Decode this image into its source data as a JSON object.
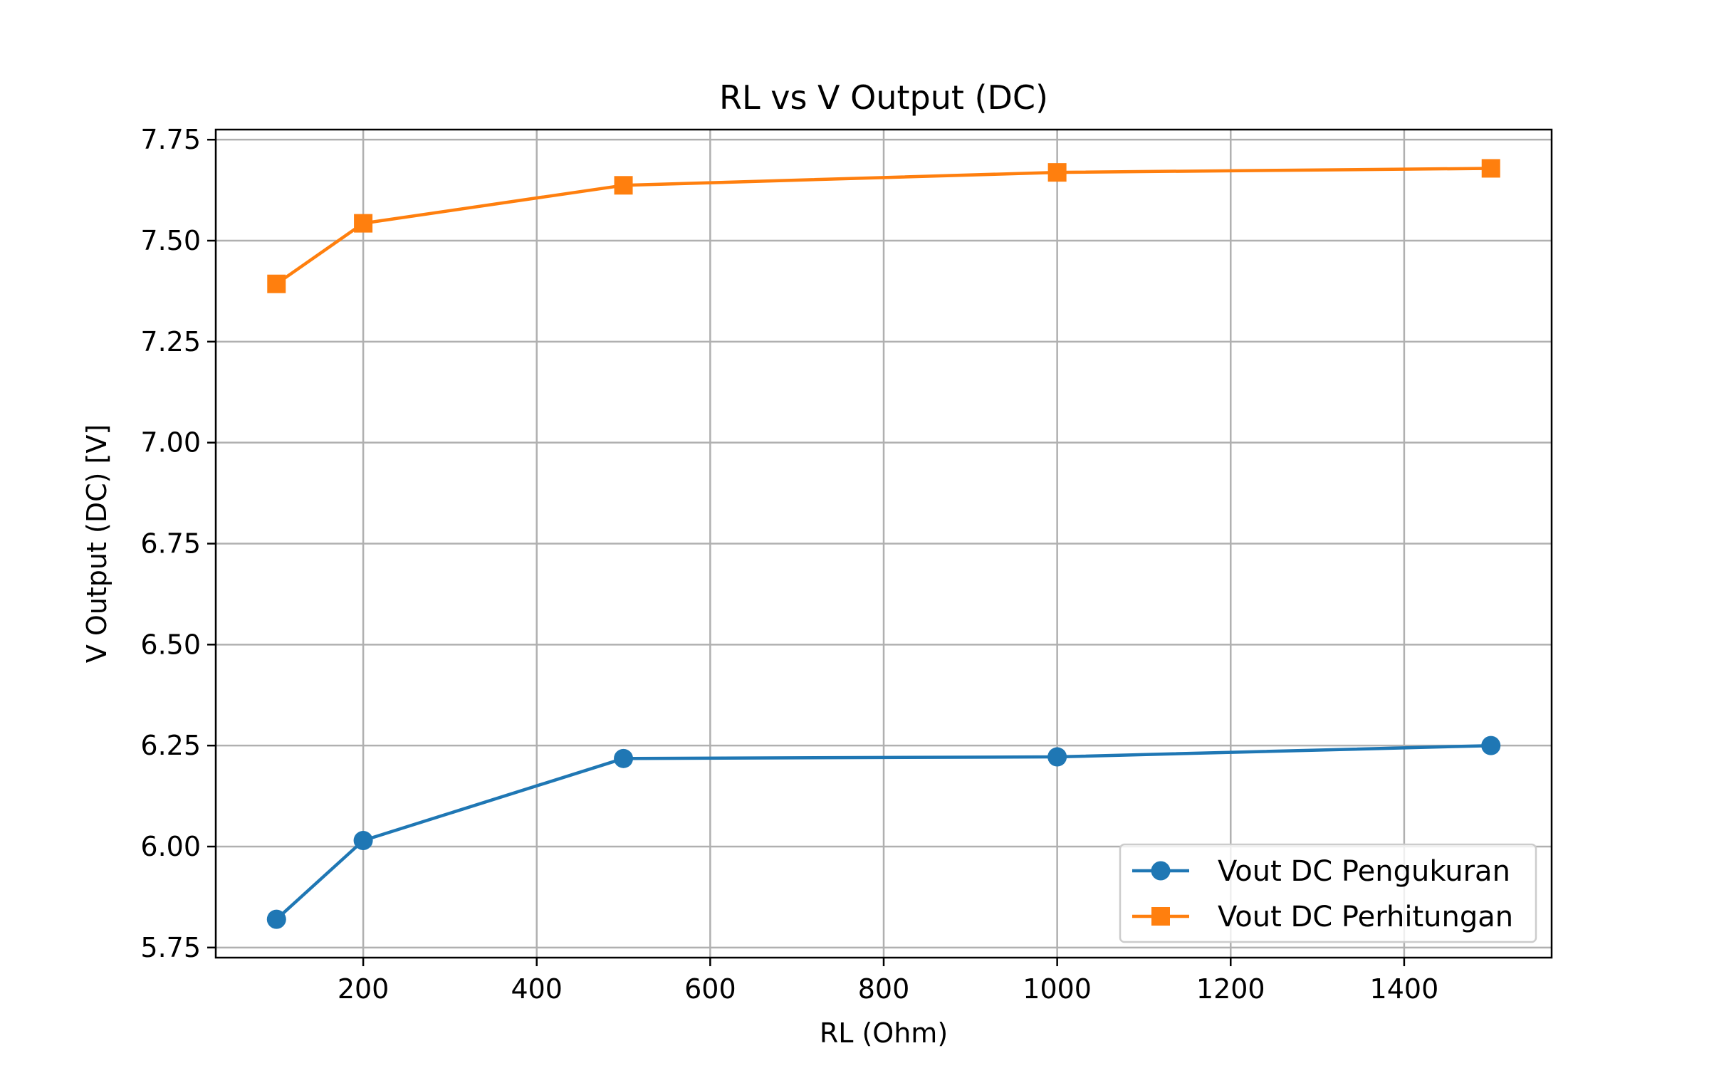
{
  "chart_data": {
    "type": "line",
    "title": "RL vs V Output (DC)",
    "xlabel": "RL (Ohm)",
    "ylabel": "V Output (DC) [V]",
    "x": [
      100,
      200,
      500,
      1000,
      1500
    ],
    "xlim": [
      30,
      1570
    ],
    "ylim": [
      5.725,
      7.775
    ],
    "xticks": [
      200,
      400,
      600,
      800,
      1000,
      1200,
      1400
    ],
    "xtick_labels": [
      "200",
      "400",
      "600",
      "800",
      "1000",
      "1200",
      "1400"
    ],
    "yticks": [
      5.75,
      6.0,
      6.25,
      6.5,
      6.75,
      7.0,
      7.25,
      7.5,
      7.75
    ],
    "ytick_labels": [
      "5.75",
      "6.00",
      "6.25",
      "6.50",
      "6.75",
      "7.00",
      "7.25",
      "7.50",
      "7.75"
    ],
    "grid": true,
    "legend_position": "lower-right",
    "series": [
      {
        "name": "Vout DC Pengukuran",
        "values": [
          5.82,
          6.015,
          6.218,
          6.222,
          6.25
        ],
        "color": "#1f77b4",
        "marker": "circle"
      },
      {
        "name": "Vout DC Perhitungan",
        "values": [
          7.393,
          7.543,
          7.637,
          7.669,
          7.679
        ],
        "color": "#ff7f0e",
        "marker": "square"
      }
    ]
  }
}
